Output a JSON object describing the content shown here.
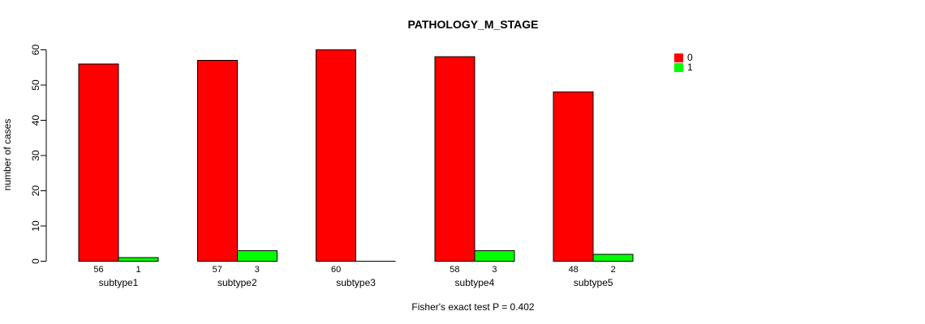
{
  "chart_data": {
    "type": "bar",
    "grouped": true,
    "title": "PATHOLOGY_M_STAGE",
    "categories": [
      "subtype1",
      "subtype2",
      "subtype3",
      "subtype4",
      "subtype5"
    ],
    "series": [
      {
        "name": "0",
        "color": "#ff0000",
        "values": [
          56,
          57,
          60,
          58,
          48
        ]
      },
      {
        "name": "1",
        "color": "#00ff00",
        "values": [
          1,
          3,
          0,
          3,
          2
        ]
      }
    ],
    "xlabel": "",
    "ylabel": "number of cases",
    "ylim": [
      0,
      60
    ],
    "yticks": [
      0,
      10,
      20,
      30,
      40,
      50,
      60
    ],
    "grid": false,
    "legend_position": "top-right",
    "bar_value_labels_shown": true,
    "annotation": "Fisher's exact test P = 0.402"
  },
  "colors": {
    "axis": "#000000",
    "bar_border": "#000000",
    "background": "#ffffff",
    "text": "#000000"
  }
}
